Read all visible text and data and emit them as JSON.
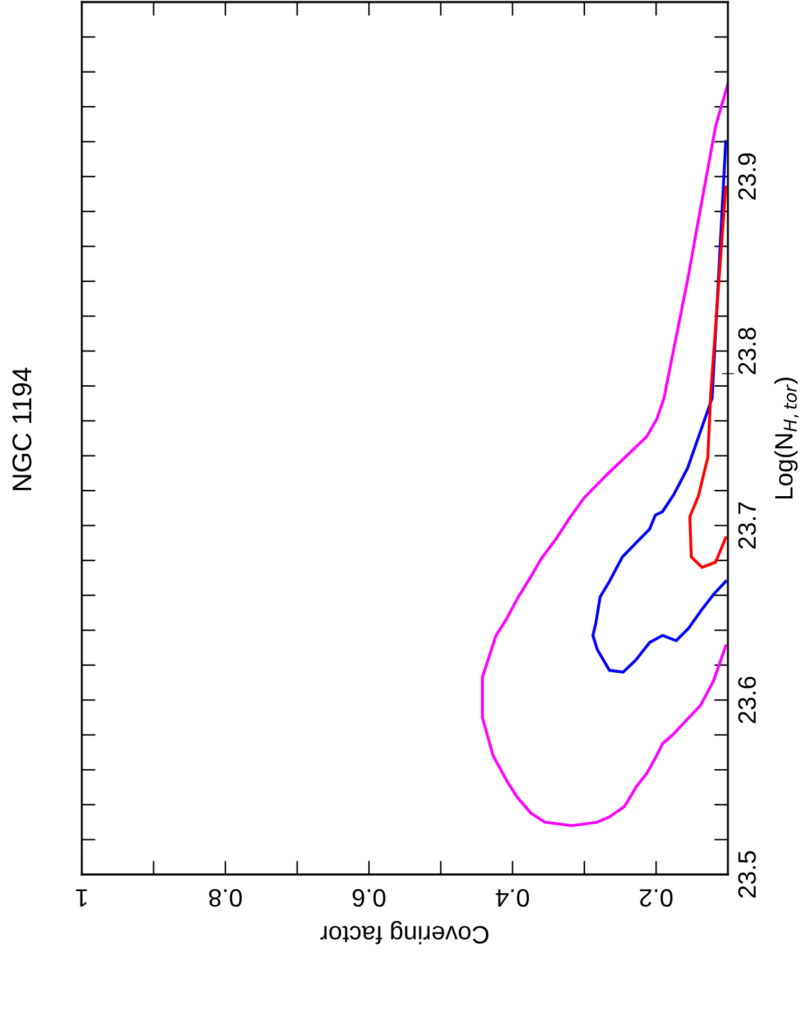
{
  "chart_data": {
    "type": "line",
    "title": "NGC 1194",
    "xlabel": "Covering factor",
    "ylabel": "Log(N$_{H,tor}$)",
    "xlim": [
      1,
      0.1
    ],
    "ylim": [
      23.5,
      24.0
    ],
    "xticks": [
      0.2,
      0.4,
      0.6,
      0.8,
      1
    ],
    "yticks": [
      23.5,
      23.6,
      23.7,
      23.8,
      23.9
    ],
    "grid": false,
    "series": [
      {
        "color": "#ff00ff",
        "x": [
          0.103,
          0.12,
          0.138,
          0.161,
          0.177,
          0.191,
          0.202,
          0.213,
          0.228,
          0.244,
          0.265,
          0.282,
          0.299,
          0.318,
          0.336,
          0.355,
          0.374,
          0.393,
          0.407,
          0.427,
          0.442,
          0.442,
          0.423,
          0.409,
          0.392,
          0.374,
          0.36,
          0.34,
          0.321,
          0.3,
          0.269,
          0.241,
          0.213,
          0.199,
          0.189,
          0.175,
          0.156,
          0.138,
          0.117,
          0.1
        ],
        "values": [
          23.631,
          23.611,
          23.597,
          23.587,
          23.58,
          23.575,
          23.566,
          23.558,
          23.55,
          23.539,
          23.533,
          23.53,
          23.529,
          23.528,
          23.529,
          23.53,
          23.535,
          23.544,
          23.553,
          23.568,
          23.59,
          23.613,
          23.637,
          23.646,
          23.659,
          23.671,
          23.681,
          23.692,
          23.704,
          23.716,
          23.729,
          23.74,
          23.751,
          23.761,
          23.773,
          23.802,
          23.841,
          23.882,
          23.929,
          23.953
        ]
      },
      {
        "color": "#0000ff",
        "x": [
          0.103,
          0.119,
          0.136,
          0.155,
          0.172,
          0.191,
          0.209,
          0.228,
          0.246,
          0.265,
          0.282,
          0.288,
          0.284,
          0.278,
          0.265,
          0.247,
          0.228,
          0.209,
          0.201,
          0.191,
          0.175,
          0.156,
          0.122,
          0.103
        ],
        "values": [
          23.668,
          23.661,
          23.652,
          23.641,
          23.634,
          23.637,
          23.633,
          23.623,
          23.616,
          23.617,
          23.629,
          23.637,
          23.644,
          23.659,
          23.668,
          23.682,
          23.69,
          23.698,
          23.706,
          23.708,
          23.718,
          23.733,
          23.773,
          23.92
        ]
      },
      {
        "color": "#ff0000",
        "x": [
          0.103,
          0.117,
          0.136,
          0.151,
          0.153,
          0.141,
          0.128,
          0.124,
          0.103
        ],
        "values": [
          23.693,
          23.679,
          23.676,
          23.682,
          23.705,
          23.717,
          23.739,
          23.775,
          23.894
        ]
      },
      {
        "type": "scatter",
        "color": "#000000",
        "marker": "cross",
        "x": [
          0.1
        ],
        "values": [
          23.787
        ]
      }
    ]
  }
}
